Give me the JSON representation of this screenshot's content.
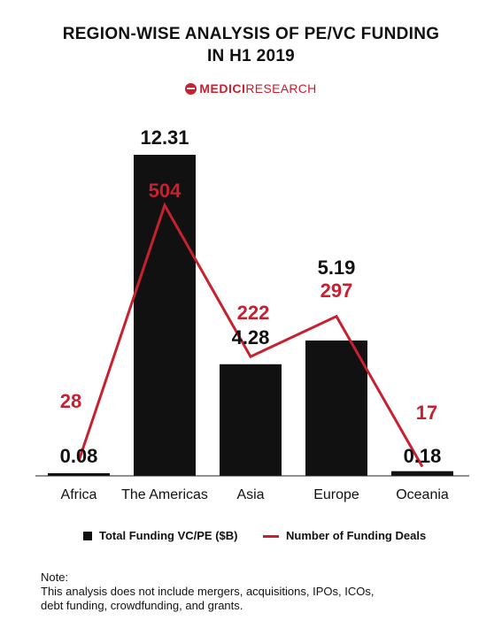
{
  "header": {
    "title_line1": "REGION-WISE ANALYSIS OF PE/VC FUNDING",
    "title_line2": "IN H1 2019",
    "brand_bold": "MEDICI",
    "brand_light": "RESEARCH"
  },
  "chart_data": {
    "type": "bar",
    "categories": [
      "Africa",
      "The Americas",
      "Asia",
      "Europe",
      "Oceania"
    ],
    "series": [
      {
        "name": "Total Funding VC/PE ($B)",
        "type": "bar",
        "values": [
          0.08,
          12.31,
          4.28,
          5.19,
          0.18
        ],
        "color": "#111111"
      },
      {
        "name": "Number of Funding Deals",
        "type": "line",
        "values": [
          28,
          504,
          222,
          297,
          17
        ],
        "color": "#c8202f"
      }
    ],
    "bar_labels": [
      "0.08",
      "12.31",
      "4.28",
      "5.19",
      "0.18"
    ],
    "line_labels": [
      "28",
      "504",
      "222",
      "297",
      "17"
    ],
    "bar_ylim": [
      0,
      12.31
    ],
    "line_ylim": [
      0,
      600
    ],
    "legend_position": "bottom",
    "grid": false
  },
  "legend": {
    "bar_label": "Total Funding VC/PE ($B)",
    "line_label": "Number of Funding Deals"
  },
  "note": {
    "heading": "Note:",
    "line1": "This analysis does not include mergers, acquisitions, IPOs, ICOs,",
    "line2": "debt funding, crowdfunding, and grants."
  }
}
